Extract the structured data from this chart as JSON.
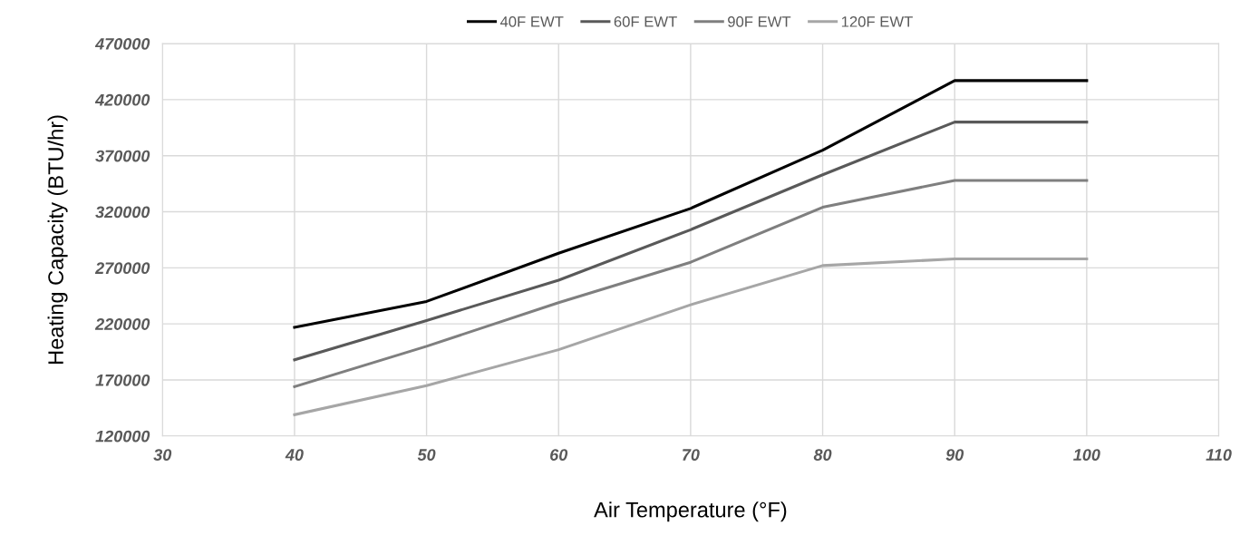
{
  "chart_data": {
    "type": "line",
    "xlabel": "Air Temperature (°F)",
    "ylabel": "Heating Capacity (BTU/hr)",
    "x": [
      40,
      50,
      60,
      70,
      80,
      90,
      100
    ],
    "series": [
      {
        "name": "40F EWT",
        "color": "#000000",
        "values": [
          217000,
          240000,
          283000,
          323000,
          375000,
          437000,
          437000
        ]
      },
      {
        "name": "60F EWT",
        "color": "#595959",
        "values": [
          188000,
          223000,
          259000,
          304000,
          353000,
          400000,
          400000
        ]
      },
      {
        "name": "90F EWT",
        "color": "#7f7f7f",
        "values": [
          164000,
          200000,
          239000,
          275000,
          324000,
          348000,
          348000
        ]
      },
      {
        "name": "120F EWT",
        "color": "#a6a6a6",
        "values": [
          139000,
          165000,
          197000,
          237000,
          272000,
          278000,
          278000
        ]
      }
    ],
    "xlim": [
      30,
      110
    ],
    "xticks": [
      30,
      40,
      50,
      60,
      70,
      80,
      90,
      100,
      110
    ],
    "ylim": [
      120000,
      470000
    ],
    "yticks": [
      120000,
      170000,
      220000,
      270000,
      320000,
      370000,
      420000,
      470000
    ],
    "grid": true,
    "legend": "top",
    "marker": "none",
    "line_style": "solid"
  }
}
